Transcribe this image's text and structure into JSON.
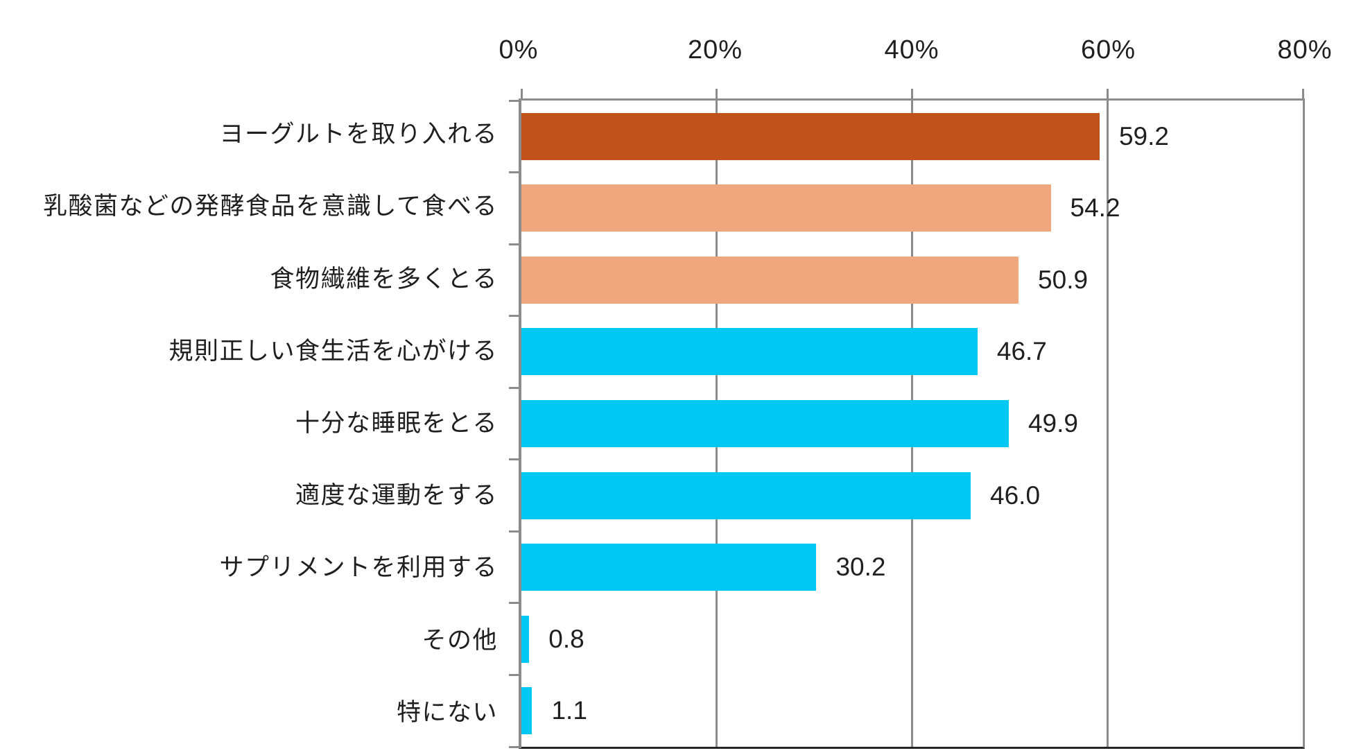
{
  "chart_data": {
    "type": "bar",
    "orientation": "horizontal",
    "title": "",
    "xlabel": "",
    "ylabel": "",
    "categories": [
      "ヨーグルトを取り入れる",
      "乳酸菌などの発酵食品を意識して食べる",
      "食物繊維を多くとる",
      "規則正しい食生活を心がける",
      "十分な睡眠をとる",
      "適度な運動をする",
      "サプリメントを利用する",
      "その他",
      "特にない"
    ],
    "values": [
      59.2,
      54.2,
      50.9,
      46.7,
      49.9,
      46.0,
      30.2,
      0.8,
      1.1
    ],
    "value_labels": [
      "59.2",
      "54.2",
      "50.9",
      "46.7",
      "49.9",
      "46.0",
      "30.2",
      "0.8",
      "1.1"
    ],
    "bar_colors": [
      "#c0521b",
      "#f0a77e",
      "#f0a77e",
      "#00c8f2",
      "#00c8f2",
      "#00c8f2",
      "#00c8f2",
      "#00c8f2",
      "#00c8f2"
    ],
    "x_axis": {
      "position": "top",
      "ticks": [
        "0%",
        "20%",
        "40%",
        "60%",
        "80%"
      ],
      "tick_values": [
        0,
        20,
        40,
        60,
        80
      ],
      "min": 0,
      "max": 80
    },
    "grid": true,
    "legend": false,
    "colors": {
      "accent_dark_orange": "#c0521b",
      "accent_salmon": "#f0a77e",
      "accent_cyan": "#00c8f2",
      "gridline_gray": "#8c8c8c",
      "bottom_axis_dark": "#262626",
      "text": "#1f1f1f",
      "background": "#ffffff"
    }
  }
}
